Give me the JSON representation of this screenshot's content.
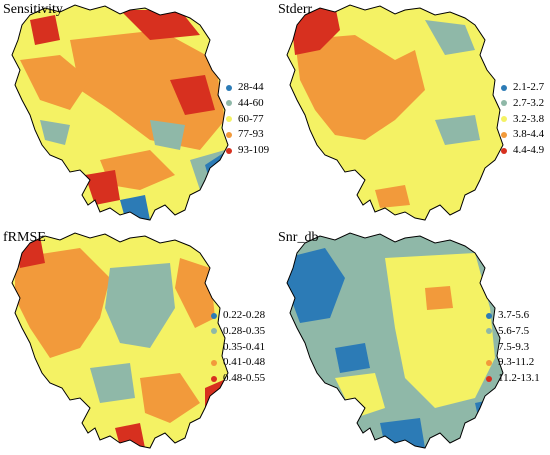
{
  "colors": {
    "c1": "#2c7bb6",
    "c2": "#8fb8a8",
    "c3": "#f4f264",
    "c4": "#f29a3b",
    "c5": "#d7301f",
    "outline": "#000000"
  },
  "panels": [
    {
      "title": "Sensitivity",
      "legend": [
        {
          "label": "28-44",
          "color": "#2c7bb6"
        },
        {
          "label": "44-60",
          "color": "#8fb8a8"
        },
        {
          "label": "60-77",
          "color": "#f4f264"
        },
        {
          "label": "77-93",
          "color": "#f29a3b"
        },
        {
          "label": "93-109",
          "color": "#d7301f"
        }
      ]
    },
    {
      "title": "Stderr",
      "legend": [
        {
          "label": "2.1-2.7",
          "color": "#2c7bb6"
        },
        {
          "label": "2.7-3.2",
          "color": "#8fb8a8"
        },
        {
          "label": "3.2-3.8",
          "color": "#f4f264"
        },
        {
          "label": "3.8-4.4",
          "color": "#f29a3b"
        },
        {
          "label": "4.4-4.9",
          "color": "#d7301f"
        }
      ]
    },
    {
      "title": "fRMSE",
      "legend": [
        {
          "label": "0.22-0.28",
          "color": "#2c7bb6"
        },
        {
          "label": "0.28-0.35",
          "color": "#8fb8a8"
        },
        {
          "label": "0.35-0.41",
          "color": "#f4f264"
        },
        {
          "label": "0.41-0.48",
          "color": "#f29a3b"
        },
        {
          "label": "0.48-0.55",
          "color": "#d7301f"
        }
      ]
    },
    {
      "title": "Snr_db",
      "legend": [
        {
          "label": "3.7-5.6",
          "color": "#2c7bb6"
        },
        {
          "label": "5.6-7.5",
          "color": "#8fb8a8"
        },
        {
          "label": "7.5-9.3",
          "color": "#f4f264"
        },
        {
          "label": "9.3-11.2",
          "color": "#f29a3b"
        },
        {
          "label": "11.2-13.1",
          "color": "#d7301f"
        }
      ]
    }
  ]
}
